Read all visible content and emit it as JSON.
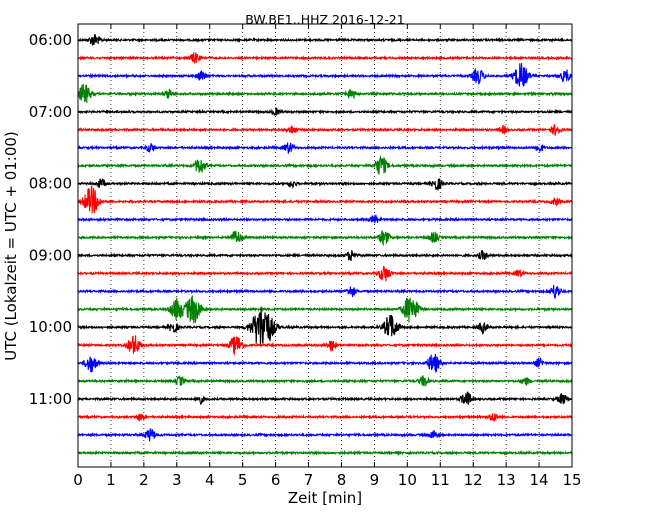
{
  "chart_data": {
    "type": "line",
    "title": "BW.BE1..HHZ 2016-12-21",
    "xlabel": "Zeit  [min]",
    "ylabel": "UTC (Lokalzeit = UTC + 01:00)",
    "xlim": [
      0,
      15
    ],
    "x_ticks": [
      "0",
      "1",
      "2",
      "3",
      "4",
      "5",
      "6",
      "7",
      "8",
      "9",
      "10",
      "11",
      "12",
      "13",
      "14",
      "15"
    ],
    "y_ticks": [
      "06:00",
      "07:00",
      "08:00",
      "09:00",
      "10:00",
      "11:00"
    ],
    "y_tick_rows": [
      0,
      4,
      8,
      12,
      16,
      20
    ],
    "grid": "vertical dotted at each minute",
    "trace_colors": [
      "#000000",
      "#ff0000",
      "#0000ff",
      "#008000"
    ],
    "rows": [
      {
        "start": "06:00",
        "events": [
          [
            0.5,
            0.35
          ]
        ]
      },
      {
        "start": "06:15",
        "events": [
          [
            3.55,
            0.3
          ]
        ]
      },
      {
        "start": "06:30",
        "events": [
          [
            3.75,
            0.3
          ],
          [
            12.15,
            0.45
          ],
          [
            13.45,
            0.7
          ],
          [
            14.8,
            0.35
          ]
        ]
      },
      {
        "start": "06:45",
        "events": [
          [
            0.2,
            0.55
          ],
          [
            2.75,
            0.25
          ],
          [
            8.3,
            0.3
          ]
        ]
      },
      {
        "start": "07:00",
        "events": [
          [
            6.0,
            0.2
          ]
        ]
      },
      {
        "start": "07:15",
        "events": [
          [
            6.5,
            0.25
          ],
          [
            12.9,
            0.2
          ],
          [
            14.5,
            0.3
          ]
        ]
      },
      {
        "start": "07:30",
        "events": [
          [
            2.2,
            0.25
          ],
          [
            6.4,
            0.3
          ],
          [
            14.0,
            0.25
          ]
        ]
      },
      {
        "start": "07:45",
        "events": [
          [
            3.7,
            0.45
          ],
          [
            9.2,
            0.55
          ]
        ]
      },
      {
        "start": "08:00",
        "events": [
          [
            0.7,
            0.25
          ],
          [
            6.5,
            0.2
          ],
          [
            10.9,
            0.35
          ]
        ]
      },
      {
        "start": "08:15",
        "events": [
          [
            0.4,
            0.8
          ],
          [
            14.5,
            0.2
          ]
        ]
      },
      {
        "start": "08:30",
        "events": [
          [
            9.0,
            0.25
          ]
        ]
      },
      {
        "start": "08:45",
        "events": [
          [
            4.8,
            0.4
          ],
          [
            9.3,
            0.4
          ],
          [
            10.8,
            0.3
          ]
        ]
      },
      {
        "start": "09:00",
        "events": [
          [
            8.3,
            0.3
          ],
          [
            12.3,
            0.25
          ]
        ]
      },
      {
        "start": "09:15",
        "events": [
          [
            9.3,
            0.45
          ],
          [
            13.4,
            0.2
          ]
        ]
      },
      {
        "start": "09:30",
        "events": [
          [
            8.3,
            0.3
          ],
          [
            14.5,
            0.4
          ]
        ]
      },
      {
        "start": "09:45",
        "events": [
          [
            3.0,
            0.6
          ],
          [
            3.5,
            0.8
          ],
          [
            10.1,
            0.8
          ]
        ]
      },
      {
        "start": "10:00",
        "events": [
          [
            5.6,
            1.3
          ],
          [
            9.5,
            0.7
          ],
          [
            12.3,
            0.3
          ],
          [
            2.9,
            0.3
          ]
        ]
      },
      {
        "start": "10:15",
        "events": [
          [
            1.7,
            0.55
          ],
          [
            4.8,
            0.55
          ],
          [
            7.7,
            0.3
          ]
        ]
      },
      {
        "start": "10:30",
        "events": [
          [
            0.4,
            0.5
          ],
          [
            10.8,
            0.55
          ],
          [
            14.0,
            0.25
          ]
        ]
      },
      {
        "start": "10:45",
        "events": [
          [
            3.1,
            0.25
          ],
          [
            10.5,
            0.3
          ],
          [
            13.6,
            0.2
          ]
        ]
      },
      {
        "start": "11:00",
        "events": [
          [
            3.7,
            0.25
          ],
          [
            11.8,
            0.4
          ],
          [
            14.7,
            0.3
          ]
        ]
      },
      {
        "start": "11:15",
        "events": [
          [
            1.9,
            0.2
          ],
          [
            12.6,
            0.25
          ]
        ]
      },
      {
        "start": "11:30",
        "events": [
          [
            2.2,
            0.35
          ],
          [
            10.8,
            0.25
          ]
        ]
      },
      {
        "start": "11:45",
        "events": []
      }
    ]
  }
}
